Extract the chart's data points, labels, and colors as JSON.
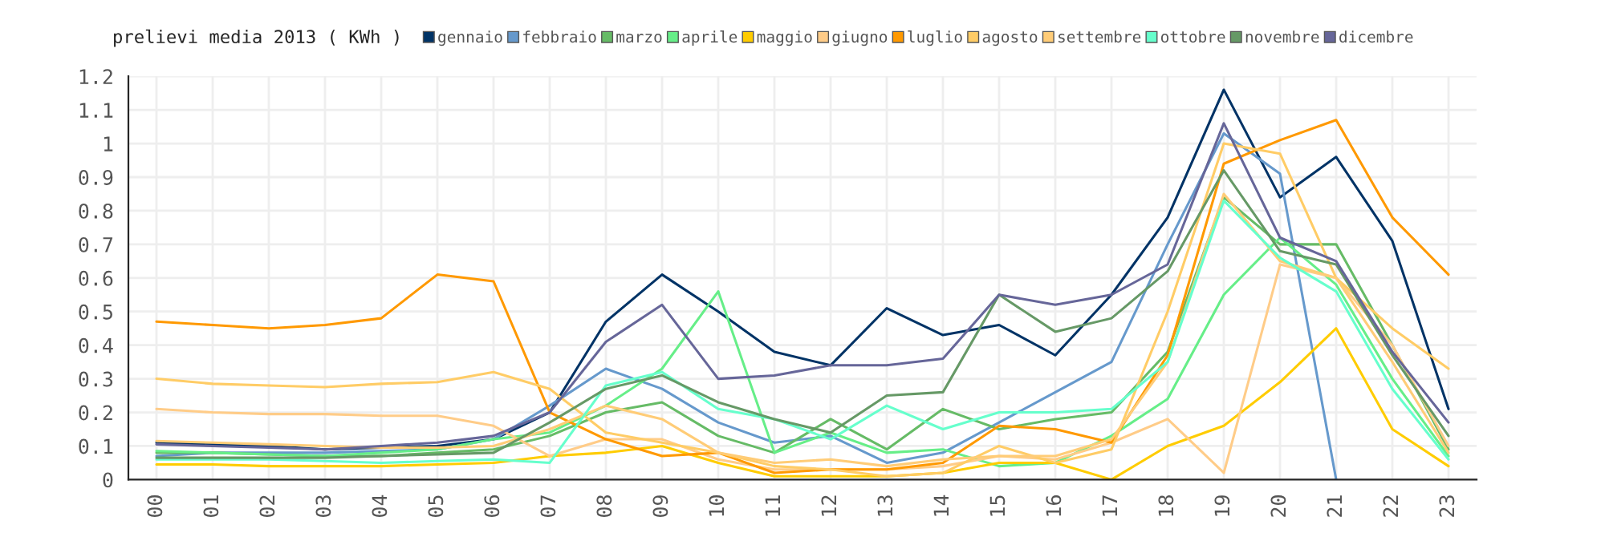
{
  "chart_data": {
    "type": "line",
    "title": "prelievi media 2013 ( KWh )",
    "categories": [
      "00",
      "01",
      "02",
      "03",
      "04",
      "05",
      "06",
      "07",
      "08",
      "09",
      "10",
      "11",
      "12",
      "13",
      "14",
      "15",
      "16",
      "17",
      "18",
      "19",
      "20",
      "21",
      "22",
      "23"
    ],
    "ylim": [
      0,
      1.2
    ],
    "yticks": [
      0,
      0.1,
      0.2,
      0.3,
      0.4,
      0.5,
      0.6,
      0.7,
      0.8,
      0.9,
      1,
      1.1,
      1.2
    ],
    "grid": true,
    "legend": "top",
    "marker": "none",
    "line_style": "solid",
    "series": [
      {
        "name": "gennaio",
        "color": "#003366",
        "values": [
          0.11,
          0.105,
          0.1,
          0.09,
          0.095,
          0.1,
          0.12,
          0.2,
          0.47,
          0.61,
          0.5,
          0.38,
          0.34,
          0.51,
          0.43,
          0.46,
          0.37,
          0.55,
          0.78,
          1.16,
          0.84,
          0.96,
          0.71,
          0.21
        ]
      },
      {
        "name": "febbraio",
        "color": "#6699cc",
        "values": [
          0.07,
          0.08,
          0.08,
          0.08,
          0.085,
          0.09,
          0.12,
          0.22,
          0.33,
          0.27,
          0.17,
          0.11,
          0.13,
          0.05,
          0.08,
          0.17,
          0.26,
          0.35,
          0.7,
          1.03,
          0.91,
          0,
          null,
          null
        ]
      },
      {
        "name": "marzo",
        "color": "#66bb66",
        "values": [
          0.08,
          0.08,
          0.075,
          0.07,
          0.07,
          0.08,
          0.09,
          0.13,
          0.2,
          0.23,
          0.13,
          0.08,
          0.18,
          0.09,
          0.21,
          0.15,
          0.18,
          0.2,
          0.38,
          0.84,
          0.7,
          0.7,
          0.4,
          0.09
        ]
      },
      {
        "name": "aprile",
        "color": "#66ee88",
        "values": [
          0.085,
          0.08,
          0.075,
          0.07,
          0.08,
          0.09,
          0.12,
          0.14,
          0.22,
          0.33,
          0.56,
          0.08,
          0.14,
          0.08,
          0.09,
          0.04,
          0.05,
          0.13,
          0.24,
          0.55,
          0.72,
          0.58,
          0.3,
          0.07
        ]
      },
      {
        "name": "maggio",
        "color": "#ffcc00",
        "values": [
          0.045,
          0.045,
          0.04,
          0.04,
          0.04,
          0.045,
          0.05,
          0.07,
          0.08,
          0.1,
          0.05,
          0.01,
          0.01,
          0.01,
          0.02,
          0.05,
          0.05,
          0,
          0.1,
          0.16,
          0.29,
          0.45,
          0.15,
          0.04
        ]
      },
      {
        "name": "giugno",
        "color": "#ffcc88",
        "values": [
          0.21,
          0.2,
          0.195,
          0.195,
          0.19,
          0.19,
          0.16,
          0.07,
          0.12,
          0.12,
          0.06,
          0.03,
          0.03,
          0.03,
          0.04,
          0.07,
          0.06,
          0.11,
          0.18,
          0.02,
          0.64,
          0.6,
          0.4,
          0.1
        ]
      },
      {
        "name": "luglio",
        "color": "#ff9900",
        "values": [
          0.47,
          0.46,
          0.45,
          0.46,
          0.48,
          0.61,
          0.59,
          0.2,
          0.12,
          0.07,
          0.08,
          0.02,
          0.03,
          0.03,
          0.05,
          0.16,
          0.15,
          0.11,
          0.37,
          0.94,
          1.01,
          1.07,
          0.78,
          0.61
        ]
      },
      {
        "name": "agosto",
        "color": "#ffcc66",
        "values": [
          0.3,
          0.285,
          0.28,
          0.275,
          0.285,
          0.29,
          0.32,
          0.27,
          0.14,
          0.11,
          0.08,
          0.04,
          0.03,
          0.01,
          0.02,
          0.1,
          0.05,
          0.09,
          0.5,
          1.0,
          0.97,
          0.6,
          0.45,
          0.33
        ]
      },
      {
        "name": "settembre",
        "color": "#ffcc77",
        "values": [
          0.115,
          0.11,
          0.105,
          0.1,
          0.095,
          0.095,
          0.1,
          0.15,
          0.22,
          0.18,
          0.08,
          0.05,
          0.06,
          0.04,
          0.06,
          0.07,
          0.07,
          0.12,
          0.35,
          0.85,
          0.65,
          0.6,
          0.35,
          0.08
        ]
      },
      {
        "name": "ottobre",
        "color": "#66ffcc",
        "values": [
          0.06,
          0.06,
          0.06,
          0.055,
          0.05,
          0.055,
          0.06,
          0.05,
          0.28,
          0.32,
          0.21,
          0.18,
          0.12,
          0.22,
          0.15,
          0.2,
          0.2,
          0.21,
          0.35,
          0.83,
          0.66,
          0.56,
          0.27,
          0.06
        ]
      },
      {
        "name": "novembre",
        "color": "#669966",
        "values": [
          0.065,
          0.065,
          0.065,
          0.065,
          0.07,
          0.075,
          0.08,
          0.17,
          0.27,
          0.31,
          0.23,
          0.18,
          0.14,
          0.25,
          0.26,
          0.55,
          0.44,
          0.48,
          0.62,
          0.92,
          0.68,
          0.64,
          0.37,
          0.13
        ]
      },
      {
        "name": "dicembre",
        "color": "#666699",
        "values": [
          0.105,
          0.1,
          0.095,
          0.09,
          0.1,
          0.11,
          0.13,
          0.2,
          0.41,
          0.52,
          0.3,
          0.31,
          0.34,
          0.34,
          0.36,
          0.55,
          0.52,
          0.55,
          0.64,
          1.06,
          0.72,
          0.65,
          0.38,
          0.17
        ]
      }
    ]
  }
}
